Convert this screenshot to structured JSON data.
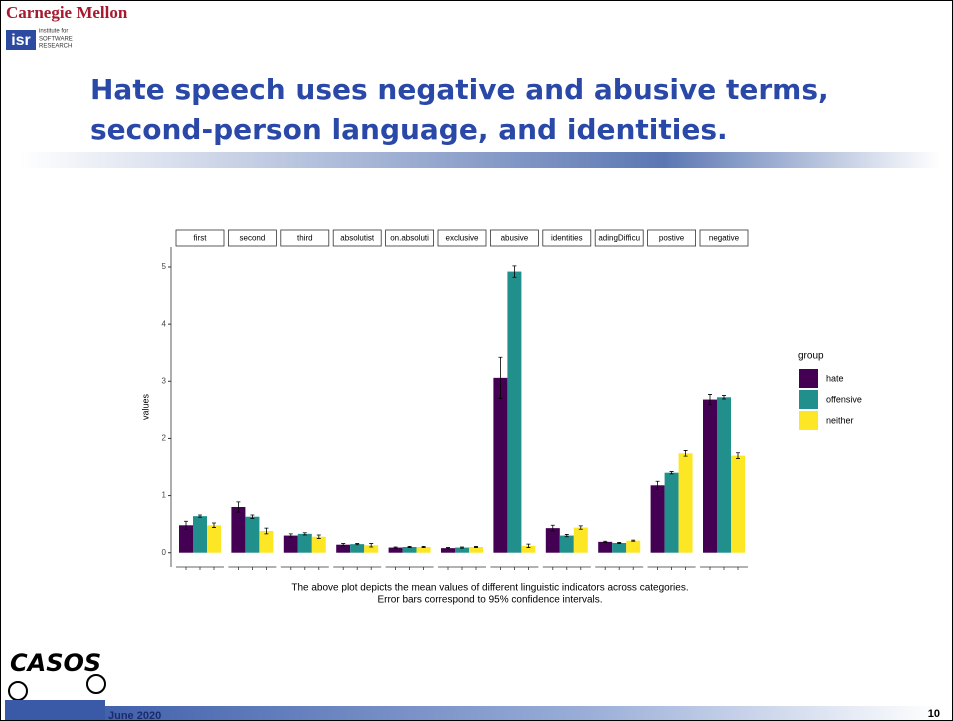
{
  "slide": {
    "org": "Carnegie Mellon",
    "logo": "isr",
    "logo_text": [
      "institute for",
      "SOFTWARE",
      "RESEARCH"
    ],
    "title_lines": [
      "Hate speech uses negative and abusive terms,",
      "second-person language, and identities."
    ],
    "caption_lines": [
      "The above plot depicts the mean values of different linguistic indicators across categories.",
      "Error bars correspond to 95% confidence intervals."
    ],
    "footer_logo": "CASOS",
    "date": "June 2020",
    "page": "10"
  },
  "chart_data": {
    "type": "bar",
    "categories": [
      "first",
      "second",
      "third",
      "absolutist",
      "on.absoluti",
      "exclusive",
      "abusive",
      "identities",
      "adingDifficu",
      "postive",
      "negative"
    ],
    "y_label": "values",
    "legend_title": "group",
    "series": [
      {
        "name": "hate",
        "color": "#440154",
        "values": [
          0.48,
          0.8,
          0.3,
          0.14,
          0.09,
          0.08,
          3.06,
          0.43,
          0.19,
          1.18,
          2.68
        ],
        "errors": [
          0.07,
          0.09,
          0.03,
          0.02,
          0.01,
          0.01,
          0.36,
          0.05,
          0.01,
          0.07,
          0.09
        ]
      },
      {
        "name": "offensive",
        "color": "#21908c",
        "values": [
          0.64,
          0.63,
          0.33,
          0.15,
          0.1,
          0.09,
          4.92,
          0.3,
          0.17,
          1.4,
          2.72
        ],
        "errors": [
          0.02,
          0.03,
          0.02,
          0.01,
          0.01,
          0.01,
          0.1,
          0.02,
          0.01,
          0.02,
          0.03
        ]
      },
      {
        "name": "neither",
        "color": "#fde725",
        "values": [
          0.48,
          0.38,
          0.28,
          0.13,
          0.1,
          0.1,
          0.12,
          0.44,
          0.21,
          1.74,
          1.7
        ],
        "errors": [
          0.04,
          0.05,
          0.03,
          0.03,
          0.01,
          0.01,
          0.03,
          0.03,
          0.01,
          0.05,
          0.05
        ]
      }
    ],
    "ylim": [
      -0.25,
      5.35
    ],
    "yticks": [
      0,
      1,
      2,
      3,
      4,
      5
    ],
    "grid": false
  }
}
